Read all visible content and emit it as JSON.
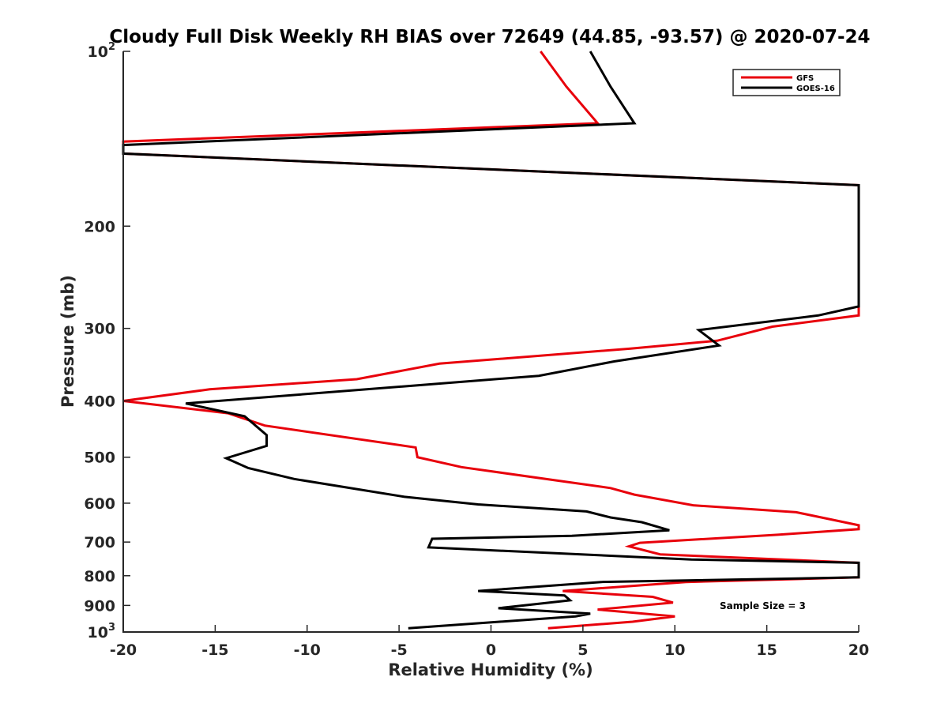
{
  "chart_data": {
    "type": "line",
    "title": "Cloudy Full Disk Weekly RH BIAS over 72649 (44.85, -93.57) @ 2020-07-24",
    "xlabel": "Relative Humidity (%)",
    "ylabel": "Pressure (mb)",
    "xlim": [
      -20,
      20
    ],
    "ylim": [
      100,
      1000
    ],
    "yscale": "log",
    "y_reversed": true,
    "x_ticks": [
      "-20",
      "-15",
      "-10",
      "-5",
      "0",
      "5",
      "10",
      "15",
      "20"
    ],
    "y_ticks": [
      {
        "value": 100,
        "base": "10",
        "exp": "2"
      },
      {
        "value": 200,
        "label": "200"
      },
      {
        "value": 300,
        "label": "300"
      },
      {
        "value": 400,
        "label": "400"
      },
      {
        "value": 500,
        "label": "500"
      },
      {
        "value": 600,
        "label": "600"
      },
      {
        "value": 700,
        "label": "700"
      },
      {
        "value": 800,
        "label": "800"
      },
      {
        "value": 900,
        "label": "900"
      },
      {
        "value": 1000,
        "base": "10",
        "exp": "3"
      }
    ],
    "legend_position": "top-right",
    "annotation": "Sample Size = 3",
    "series": [
      {
        "name": "GFS",
        "color": "#e8000b",
        "points": [
          [
            2.7,
            100
          ],
          [
            4.1,
            115
          ],
          [
            5.8,
            133
          ],
          [
            -20,
            143
          ],
          [
            -20,
            150
          ],
          [
            20,
            170
          ],
          [
            20,
            285
          ],
          [
            15.3,
            298
          ],
          [
            12.3,
            315
          ],
          [
            7.6,
            325
          ],
          [
            -2.8,
            345
          ],
          [
            -7.3,
            367
          ],
          [
            -15.3,
            382
          ],
          [
            -20,
            400
          ],
          [
            -14.3,
            420
          ],
          [
            -12.3,
            441
          ],
          [
            -4.1,
            481
          ],
          [
            -4.0,
            500
          ],
          [
            -1.6,
            520
          ],
          [
            6.5,
            565
          ],
          [
            7.8,
            580
          ],
          [
            11.0,
            605
          ],
          [
            16.6,
            622
          ],
          [
            19.0,
            645
          ],
          [
            20,
            655
          ],
          [
            20,
            665
          ],
          [
            15.6,
            680
          ],
          [
            8.1,
            702
          ],
          [
            7.5,
            712
          ],
          [
            9.2,
            735
          ],
          [
            20,
            760
          ],
          [
            20,
            770
          ],
          [
            20,
            805
          ],
          [
            10.6,
            820
          ],
          [
            3.9,
            850
          ],
          [
            8.8,
            870
          ],
          [
            9.9,
            890
          ],
          [
            5.8,
            915
          ],
          [
            10.0,
            940
          ],
          [
            7.7,
            960
          ],
          [
            3.1,
            985
          ]
        ]
      },
      {
        "name": "GOES-16",
        "color": "#000000",
        "points": [
          [
            5.4,
            100
          ],
          [
            6.5,
            115
          ],
          [
            7.8,
            133
          ],
          [
            -20,
            145
          ],
          [
            -20,
            150
          ],
          [
            20,
            170
          ],
          [
            20,
            275
          ],
          [
            17.8,
            285
          ],
          [
            11.3,
            302
          ],
          [
            12.4,
            321
          ],
          [
            6.7,
            342
          ],
          [
            2.6,
            362
          ],
          [
            -16.6,
            404
          ],
          [
            -13.4,
            425
          ],
          [
            -12.2,
            458
          ],
          [
            -12.2,
            478
          ],
          [
            -14.4,
            502
          ],
          [
            -13.2,
            522
          ],
          [
            -10.7,
            545
          ],
          [
            -4.7,
            585
          ],
          [
            -0.7,
            603
          ],
          [
            5.2,
            620
          ],
          [
            6.5,
            635
          ],
          [
            8.2,
            647
          ],
          [
            9.7,
            668
          ],
          [
            4.4,
            683
          ],
          [
            -3.2,
            691
          ],
          [
            -3.4,
            715
          ],
          [
            10.9,
            750
          ],
          [
            20,
            760
          ],
          [
            20,
            805
          ],
          [
            6.0,
            820
          ],
          [
            -0.7,
            850
          ],
          [
            4.0,
            865
          ],
          [
            4.3,
            882
          ],
          [
            0.4,
            910
          ],
          [
            5.4,
            930
          ],
          [
            4.6,
            940
          ],
          [
            -4.5,
            985
          ]
        ]
      }
    ]
  }
}
